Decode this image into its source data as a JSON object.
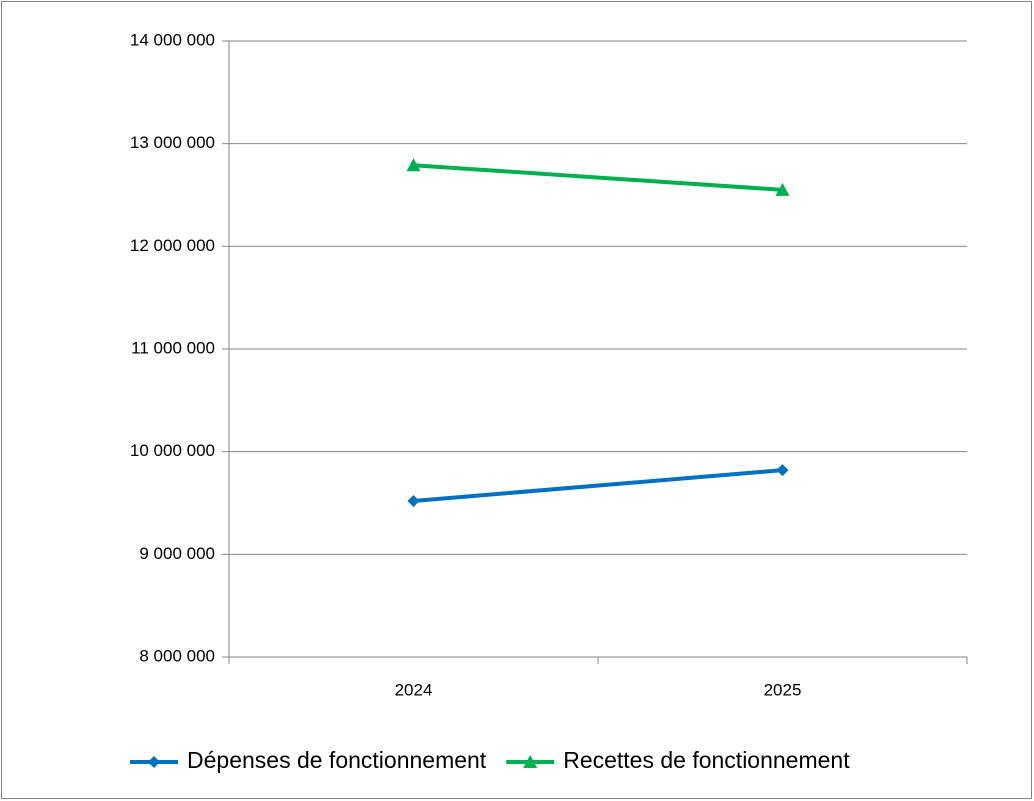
{
  "chart_data": {
    "type": "line",
    "categories": [
      "2024",
      "2025"
    ],
    "series": [
      {
        "name": "Dépenses de fonctionnement",
        "color": "#0070c0",
        "marker": "diamond",
        "values": [
          9520000,
          9820000
        ]
      },
      {
        "name": "Recettes de fonctionnement",
        "color": "#00b050",
        "marker": "triangle",
        "values": [
          12790000,
          12550000
        ]
      }
    ],
    "ylim": [
      8000000,
      14000000
    ],
    "yticks": [
      {
        "value": 8000000,
        "label": "8 000 000"
      },
      {
        "value": 9000000,
        "label": "9 000 000"
      },
      {
        "value": 10000000,
        "label": "10 000 000"
      },
      {
        "value": 11000000,
        "label": "11 000 000"
      },
      {
        "value": 12000000,
        "label": "12 000 000"
      },
      {
        "value": 13000000,
        "label": "13 000 000"
      },
      {
        "value": 14000000,
        "label": "14 000 000"
      }
    ],
    "grid": true,
    "legend": "bottom"
  }
}
